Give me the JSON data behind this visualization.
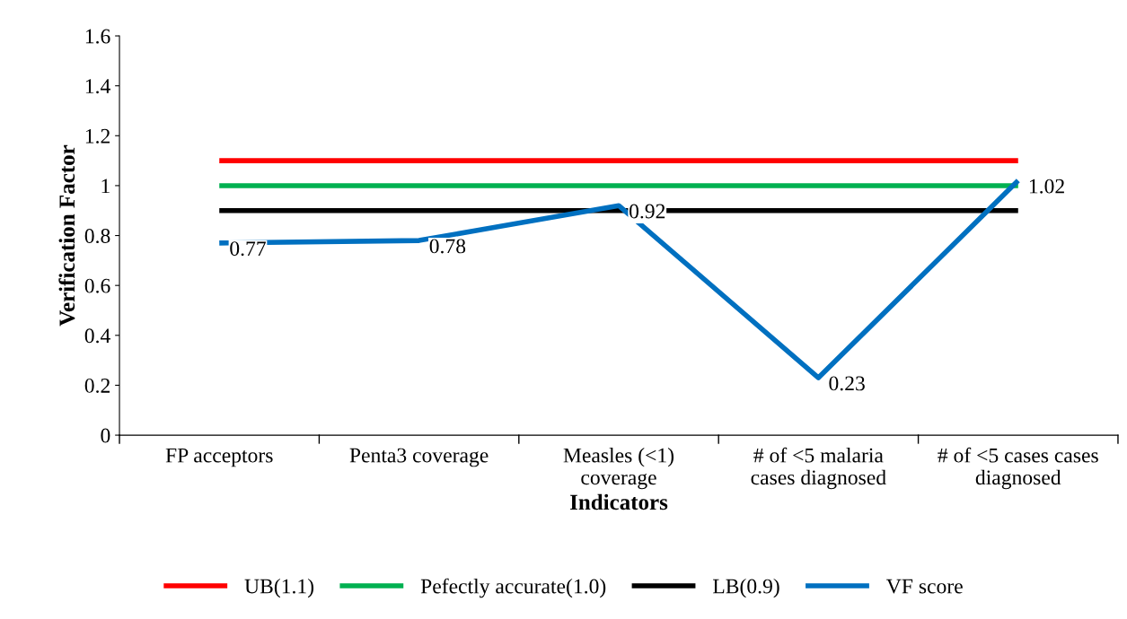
{
  "chart_data": {
    "type": "line",
    "xlabel": "Indicators",
    "ylabel": "Verification Factor",
    "categories": [
      "FP acceptors",
      "Penta3 coverage",
      "Measles (<1)\ncoverage",
      "# of <5 malaria\ncases diagnosed",
      "# of <5 cases cases\ndiagnosed"
    ],
    "series": [
      {
        "name": "UB(1.1)",
        "color": "#ff0000",
        "values": [
          1.1,
          1.1,
          1.1,
          1.1,
          1.1
        ]
      },
      {
        "name": "Pefectly accurate(1.0)",
        "color": "#00b050",
        "values": [
          1.0,
          1.0,
          1.0,
          1.0,
          1.0
        ]
      },
      {
        "name": "LB(0.9)",
        "color": "#000000",
        "values": [
          0.9,
          0.9,
          0.9,
          0.9,
          0.9
        ]
      },
      {
        "name": "VF score",
        "color": "#0070c0",
        "values": [
          0.77,
          0.78,
          0.92,
          0.23,
          1.02
        ],
        "value_labels": [
          "0.77",
          "0.78",
          "0.92",
          "0.23",
          "1.02"
        ]
      }
    ],
    "ylim": [
      0,
      1.6
    ],
    "yticks": [
      0,
      0.2,
      0.4,
      0.6,
      0.8,
      1,
      1.2,
      1.4,
      1.6
    ],
    "grid": false,
    "legend": "bottom",
    "marker": "none",
    "line_style": "solid"
  }
}
